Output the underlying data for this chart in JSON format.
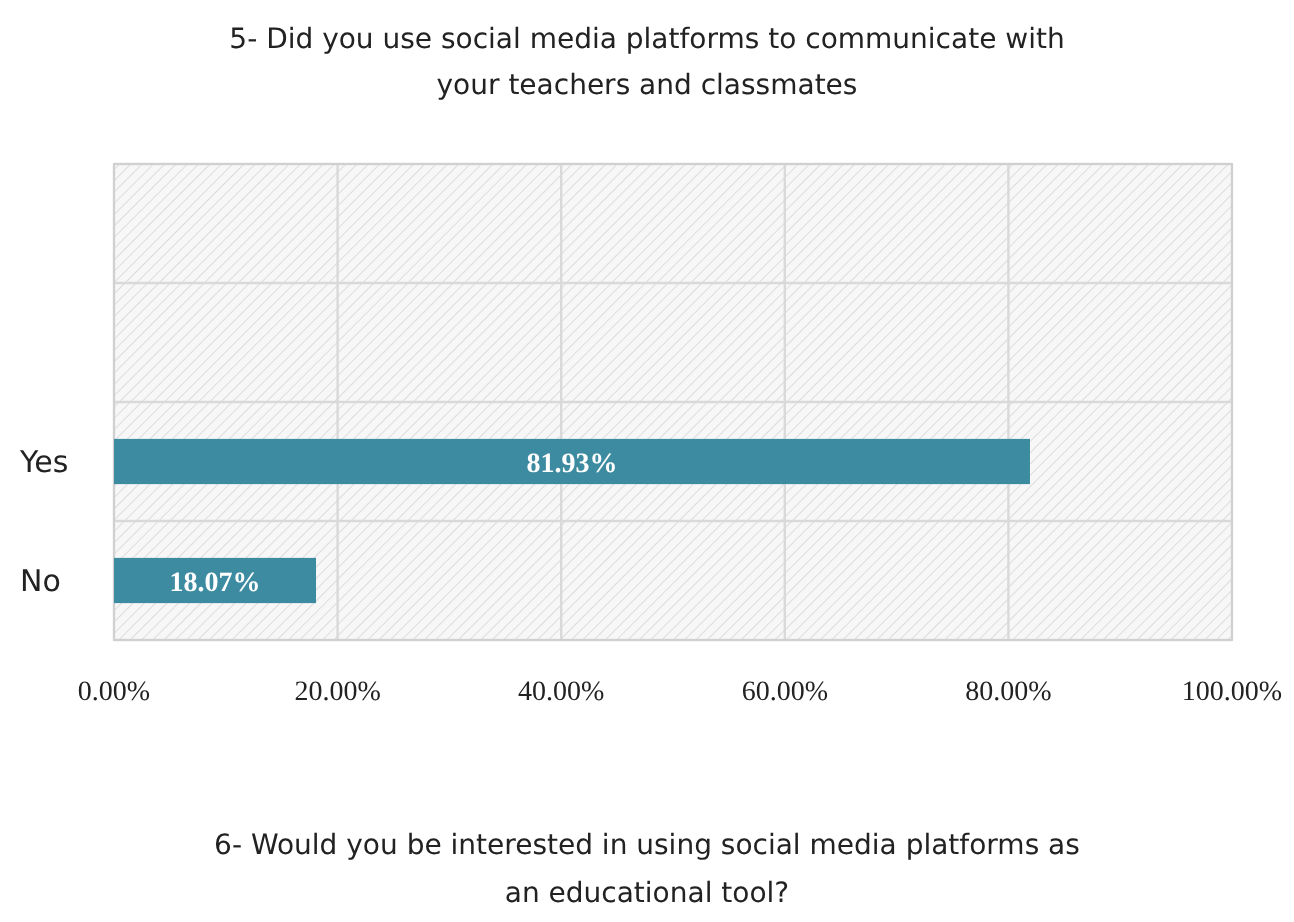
{
  "chart_data": {
    "type": "bar",
    "orientation": "horizontal",
    "title": "5- Did you use social media platforms to communicate with your teachers and classmates",
    "categories": [
      null,
      null,
      "Yes",
      "No"
    ],
    "values": [
      null,
      null,
      81.93,
      18.07
    ],
    "value_labels": [
      null,
      null,
      "81.93%",
      "18.07%"
    ],
    "color": "#3d8ba0",
    "xlim": [
      0,
      100
    ],
    "xticks": [
      {
        "value": 0,
        "label": "0.00%"
      },
      {
        "value": 20,
        "label": "20.00%"
      },
      {
        "value": 40,
        "label": "40.00%"
      },
      {
        "value": 60,
        "label": "60.00%"
      },
      {
        "value": 80,
        "label": "80.00%"
      },
      {
        "value": 100,
        "label": "100.00%"
      }
    ],
    "grid": true,
    "annotations": [
      "6- Would you be interested in using social media platforms as an educational tool?"
    ]
  }
}
